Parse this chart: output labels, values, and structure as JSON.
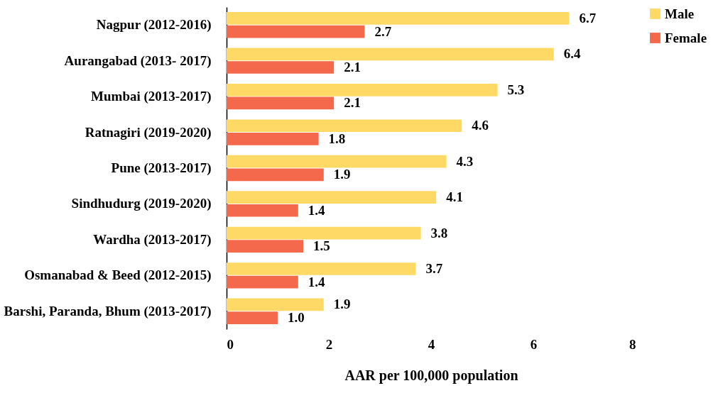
{
  "chart_data": {
    "type": "bar",
    "orientation": "horizontal",
    "xlabel": "AAR per 100,000 population",
    "categories": [
      "Nagpur (2012-2016)",
      "Aurangabad (2013- 2017)",
      "Mumbai (2013-2017)",
      "Ratnagiri (2019-2020)",
      "Pune (2013-2017)",
      "Sindhudurg (2019-2020)",
      "Wardha (2013-2017)",
      "Osmanabad & Beed (2012-2015)",
      "Barshi, Paranda, Bhum (2013-2017)"
    ],
    "series": [
      {
        "name": "Male",
        "color": "#ffd966",
        "values": [
          6.7,
          6.4,
          5.3,
          4.6,
          4.3,
          4.1,
          3.8,
          3.7,
          1.9
        ],
        "value_labels": [
          "6.7",
          "6.4",
          "5.3",
          "4.6",
          "4.3",
          "4.1",
          "3.8",
          "3.7",
          "1.9"
        ]
      },
      {
        "name": "Female",
        "color": "#f4694b",
        "values": [
          2.7,
          2.1,
          2.1,
          1.8,
          1.9,
          1.4,
          1.5,
          1.4,
          1.0
        ],
        "value_labels": [
          "2.7",
          "2.1",
          "2.1",
          "1.8",
          "1.9",
          "1.4",
          "1.5",
          "1.4",
          "1.0"
        ]
      }
    ],
    "xlim": [
      0,
      8
    ],
    "xticks": [
      0,
      2,
      4,
      6,
      8
    ],
    "legend": "right"
  }
}
